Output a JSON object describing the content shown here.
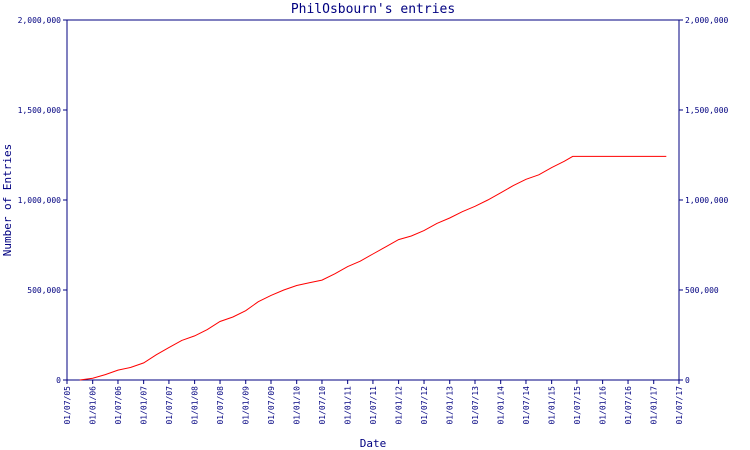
{
  "chart_data": {
    "type": "line",
    "title": "PhilOsbourn's entries",
    "xlabel": "Date",
    "ylabel": "Number of Entries",
    "colors": {
      "axis": "#000080",
      "line": "#ff0000"
    },
    "grid": false,
    "legend": "none",
    "xlim": [
      "2005-07-01",
      "2017-07-01"
    ],
    "ylim": [
      0,
      2000000
    ],
    "x_ticks": [
      "01/07/05",
      "01/01/06",
      "01/07/06",
      "01/01/07",
      "01/07/07",
      "01/01/08",
      "01/07/08",
      "01/01/09",
      "01/07/09",
      "01/01/10",
      "01/07/10",
      "01/01/11",
      "01/07/11",
      "01/01/12",
      "01/07/12",
      "01/01/13",
      "01/07/13",
      "01/01/14",
      "01/07/14",
      "01/01/15",
      "01/07/15",
      "01/01/16",
      "01/07/16",
      "01/01/17",
      "01/07/17"
    ],
    "y_ticks": [
      {
        "value": 0,
        "label": "0"
      },
      {
        "value": 500000,
        "label": "500,000"
      },
      {
        "value": 1000000,
        "label": "1,000,000"
      },
      {
        "value": 1500000,
        "label": "1,500,000"
      },
      {
        "value": 2000000,
        "label": "2,000,000"
      }
    ],
    "series": [
      {
        "x": [
          "2005-10-01",
          "2006-01-01",
          "2006-04-01",
          "2006-07-01",
          "2006-10-01",
          "2007-01-01",
          "2007-04-01",
          "2007-07-01",
          "2007-10-01",
          "2008-01-01",
          "2008-04-01",
          "2008-07-01",
          "2008-10-01",
          "2009-01-01",
          "2009-04-01",
          "2009-07-01",
          "2009-10-01",
          "2010-01-01",
          "2010-04-01",
          "2010-07-01",
          "2010-10-01",
          "2011-01-01",
          "2011-04-01",
          "2011-07-01",
          "2011-10-01",
          "2012-01-01",
          "2012-04-01",
          "2012-07-01",
          "2012-10-01",
          "2013-01-01",
          "2013-04-01",
          "2013-07-01",
          "2013-10-01",
          "2014-01-01",
          "2014-04-01",
          "2014-07-01",
          "2014-10-01",
          "2015-01-01",
          "2015-04-01",
          "2015-06-01",
          "2015-10-01",
          "2016-01-01",
          "2016-07-01",
          "2017-01-01",
          "2017-04-01"
        ],
        "y": [
          0,
          10000,
          30000,
          55000,
          70000,
          95000,
          140000,
          180000,
          220000,
          245000,
          280000,
          325000,
          350000,
          385000,
          435000,
          470000,
          500000,
          525000,
          540000,
          555000,
          590000,
          630000,
          660000,
          700000,
          740000,
          780000,
          800000,
          830000,
          870000,
          900000,
          935000,
          965000,
          1000000,
          1040000,
          1080000,
          1115000,
          1140000,
          1180000,
          1215000,
          1242000,
          1242000,
          1242000,
          1242000,
          1242000,
          1242000
        ]
      }
    ]
  }
}
